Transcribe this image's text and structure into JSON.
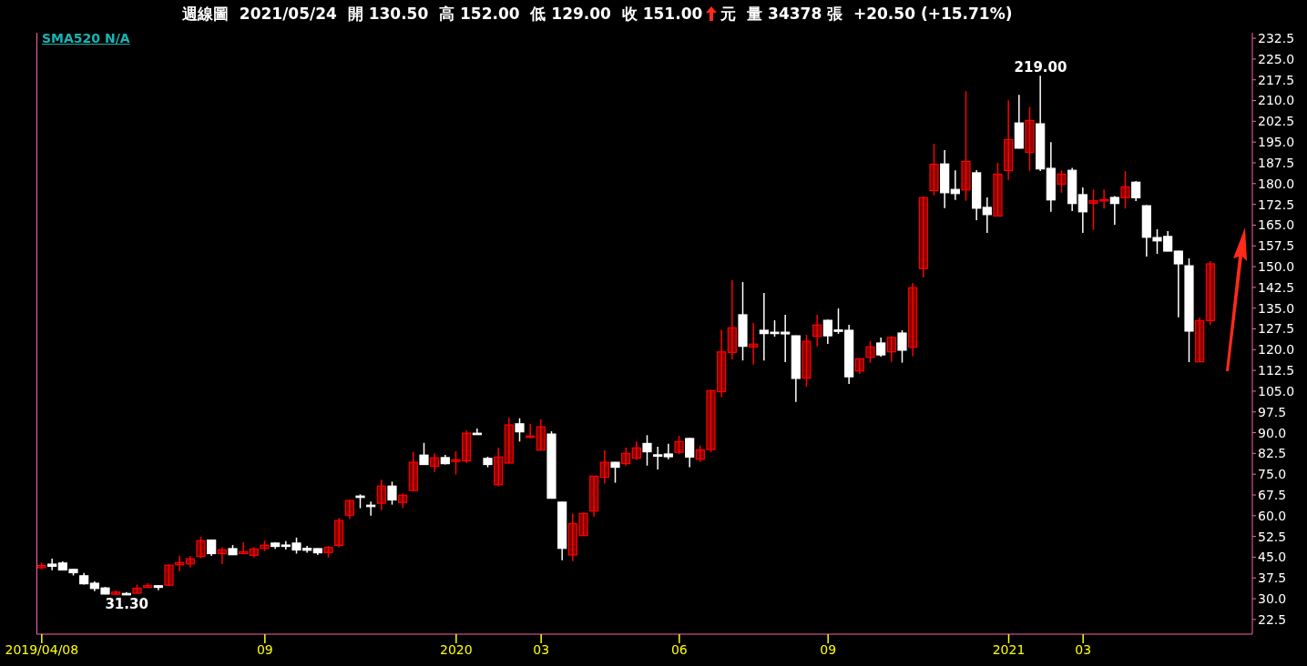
{
  "chart_data": {
    "type": "candlestick",
    "title": "週線圖  2021/05/24  開 130.50  高 152.00  低 129.00  收 151.00",
    "subtitle": "元  量 34378 張  +20.50 (+15.71%)",
    "annotations": [
      "SMA520 N/A",
      {
        "text": "219.00",
        "y": 219
      },
      {
        "text": "31.30",
        "y": 31.3
      }
    ],
    "categories": [
      "2019/04/08",
      null,
      null,
      null,
      null,
      null,
      null,
      null,
      null,
      null,
      null,
      null,
      null,
      null,
      null,
      null,
      null,
      null,
      null,
      null,
      null,
      "09",
      null,
      null,
      null,
      null,
      null,
      null,
      null,
      null,
      null,
      null,
      null,
      null,
      null,
      null,
      null,
      null,
      null,
      "2020",
      null,
      null,
      null,
      null,
      null,
      null,
      null,
      "03",
      null,
      null,
      null,
      null,
      null,
      null,
      null,
      null,
      null,
      null,
      null,
      null,
      "06",
      null,
      null,
      null,
      null,
      null,
      null,
      null,
      null,
      null,
      null,
      null,
      null,
      null,
      "09",
      null,
      null,
      null,
      null,
      null,
      null,
      null,
      null,
      null,
      null,
      null,
      null,
      null,
      null,
      null,
      null,
      "2021",
      null,
      null,
      null,
      null,
      null,
      null,
      "03",
      null,
      null,
      null,
      null,
      null,
      null,
      null,
      null,
      null,
      null,
      null,
      null
    ],
    "ohlc": [
      [
        41.2,
        43.1,
        40.7,
        42.0
      ],
      [
        42.5,
        44.5,
        40.3,
        41.7
      ],
      [
        42.9,
        43.5,
        40.3,
        40.4
      ],
      [
        40.6,
        40.8,
        38.4,
        39.4
      ],
      [
        38.3,
        39.3,
        35.1,
        35.4
      ],
      [
        35.6,
        36.3,
        32.7,
        33.7
      ],
      [
        33.9,
        34.3,
        31.6,
        31.7
      ],
      [
        31.6,
        33.0,
        31.5,
        32.4
      ],
      [
        31.9,
        32.4,
        31.3,
        31.6
      ],
      [
        32.0,
        35.1,
        31.9,
        33.8
      ],
      [
        34.1,
        35.6,
        34.0,
        34.7
      ],
      [
        34.7,
        34.8,
        33.1,
        34.1
      ],
      [
        34.9,
        42.4,
        34.8,
        42.1
      ],
      [
        42.3,
        45.5,
        40.0,
        43.1
      ],
      [
        42.6,
        45.5,
        41.3,
        44.4
      ],
      [
        45.3,
        52.4,
        44.6,
        51.0
      ],
      [
        51.2,
        51.4,
        45.5,
        46.3
      ],
      [
        46.3,
        48.5,
        42.6,
        47.7
      ],
      [
        48.1,
        49.4,
        45.8,
        45.9
      ],
      [
        46.3,
        50.4,
        46.2,
        47.0
      ],
      [
        45.7,
        48.7,
        44.9,
        48.0
      ],
      [
        48.2,
        51.1,
        47.2,
        49.3
      ],
      [
        50.1,
        50.4,
        48.0,
        48.9
      ],
      [
        49.4,
        50.8,
        47.8,
        49.1
      ],
      [
        50.1,
        52.1,
        46.3,
        47.6
      ],
      [
        48.2,
        49.1,
        46.6,
        47.5
      ],
      [
        48.1,
        48.3,
        45.8,
        46.6
      ],
      [
        46.7,
        49.1,
        44.9,
        48.5
      ],
      [
        49.3,
        59.2,
        48.5,
        58.2
      ],
      [
        60.2,
        65.8,
        58.8,
        65.5
      ],
      [
        67.1,
        67.7,
        62.7,
        66.6
      ],
      [
        63.8,
        65.1,
        60.0,
        63.5
      ],
      [
        64.5,
        73.0,
        62.0,
        70.7
      ],
      [
        70.7,
        72.3,
        64.0,
        65.7
      ],
      [
        64.8,
        68.1,
        62.8,
        67.4
      ],
      [
        69.1,
        83.0,
        69.0,
        79.3
      ],
      [
        81.9,
        86.3,
        78.4,
        78.5
      ],
      [
        77.9,
        82.5,
        75.8,
        80.9
      ],
      [
        81.0,
        82.0,
        78.5,
        78.8
      ],
      [
        79.6,
        83.3,
        74.9,
        80.2
      ],
      [
        79.8,
        90.8,
        79.0,
        89.8
      ],
      [
        89.8,
        91.5,
        89.2,
        89.3
      ],
      [
        80.7,
        81.3,
        77.5,
        78.5
      ],
      [
        71.2,
        84.6,
        70.6,
        81.2
      ],
      [
        79.0,
        95.5,
        78.9,
        92.8
      ],
      [
        93.2,
        95.2,
        86.8,
        90.3
      ],
      [
        88.4,
        93.2,
        88.0,
        88.8
      ],
      [
        83.7,
        94.8,
        83.6,
        92.1
      ],
      [
        89.5,
        90.5,
        66.2,
        66.3
      ],
      [
        64.9,
        65.0,
        43.9,
        48.2
      ],
      [
        45.8,
        60.8,
        43.6,
        57.1
      ],
      [
        52.8,
        61.2,
        52.7,
        60.8
      ],
      [
        61.7,
        74.4,
        59.7,
        74.3
      ],
      [
        73.9,
        83.7,
        71.6,
        79.3
      ],
      [
        79.3,
        79.4,
        71.9,
        77.5
      ],
      [
        78.8,
        84.6,
        78.1,
        82.5
      ],
      [
        80.8,
        86.9,
        80.1,
        84.5
      ],
      [
        86.1,
        89.1,
        78.1,
        83.1
      ],
      [
        82.0,
        84.9,
        76.7,
        81.7
      ],
      [
        82.3,
        86.0,
        80.4,
        81.3
      ],
      [
        82.9,
        88.9,
        82.2,
        86.8
      ],
      [
        87.9,
        88.2,
        77.5,
        81.2
      ],
      [
        80.4,
        85.3,
        79.4,
        83.8
      ],
      [
        83.9,
        105.5,
        82.9,
        105.2
      ],
      [
        104.8,
        127.2,
        102.8,
        119.2
      ],
      [
        119.0,
        145.1,
        116.5,
        127.9
      ],
      [
        132.6,
        144.4,
        116.1,
        121.2
      ],
      [
        121.0,
        129.6,
        114.6,
        122.0
      ],
      [
        127.0,
        140.5,
        116.1,
        125.8
      ],
      [
        126.3,
        130.6,
        124.7,
        126.0
      ],
      [
        126.3,
        132.6,
        115.5,
        125.7
      ],
      [
        125.0,
        125.1,
        101.1,
        109.6
      ],
      [
        109.7,
        125.4,
        106.6,
        123.0
      ],
      [
        124.8,
        132.6,
        121.2,
        128.9
      ],
      [
        130.6,
        130.9,
        122.1,
        125.0
      ],
      [
        127.1,
        134.9,
        125.7,
        126.8
      ],
      [
        127.0,
        129.0,
        107.6,
        110.2
      ],
      [
        112.3,
        116.8,
        111.2,
        116.7
      ],
      [
        117.2,
        123.1,
        115.2,
        121.0
      ],
      [
        122.4,
        124.4,
        117.5,
        118.1
      ],
      [
        119.2,
        124.9,
        115.6,
        124.4
      ],
      [
        126.0,
        127.0,
        115.3,
        119.8
      ],
      [
        120.9,
        144.1,
        117.6,
        142.4
      ],
      [
        149.3,
        175.3,
        146.1,
        174.9
      ],
      [
        177.5,
        194.4,
        175.7,
        187.0
      ],
      [
        187.1,
        192.1,
        171.1,
        176.7
      ],
      [
        177.9,
        184.8,
        174.1,
        176.4
      ],
      [
        177.7,
        213.4,
        173.8,
        188.0
      ],
      [
        183.9,
        184.9,
        166.8,
        171.1
      ],
      [
        171.4,
        175.0,
        162.2,
        168.8
      ],
      [
        168.3,
        187.5,
        168.2,
        183.4
      ],
      [
        184.7,
        210.1,
        181.3,
        195.9
      ],
      [
        201.9,
        212.1,
        192.7,
        192.8
      ],
      [
        191.3,
        207.7,
        184.6,
        202.8
      ],
      [
        201.6,
        219.0,
        184.5,
        185.3
      ],
      [
        185.5,
        195.0,
        169.8,
        174.1
      ],
      [
        179.8,
        184.8,
        176.7,
        183.4
      ],
      [
        184.8,
        185.7,
        170.1,
        172.8
      ],
      [
        176.0,
        178.6,
        162.2,
        169.8
      ],
      [
        172.9,
        177.9,
        163.3,
        173.8
      ],
      [
        173.8,
        177.9,
        171.0,
        174.2
      ],
      [
        175.0,
        175.5,
        165.1,
        172.8
      ],
      [
        174.9,
        184.5,
        171.0,
        178.8
      ],
      [
        180.5,
        180.9,
        173.7,
        174.9
      ],
      [
        172.0,
        172.2,
        153.6,
        160.6
      ],
      [
        160.5,
        163.5,
        154.6,
        159.3
      ],
      [
        160.9,
        162.8,
        155.5,
        155.6
      ],
      [
        155.6,
        155.7,
        131.7,
        151.0
      ],
      [
        150.3,
        153.0,
        115.5,
        126.7
      ],
      [
        115.6,
        131.6,
        115.5,
        130.5
      ],
      [
        130.5,
        152.0,
        129.0,
        151.0
      ]
    ],
    "colors": [
      "#ff0000",
      "#ffffff",
      "#ffffff",
      "#ffffff",
      "#ffffff",
      "#ffffff",
      "#ffffff",
      "#ff0000",
      "#ffffff",
      "#ff0000",
      "#ff0000",
      "#ffffff",
      "#ff0000",
      "#ff0000",
      "#ff0000",
      "#ff0000",
      "#ffffff",
      "#ff0000",
      "#ffffff",
      "#ff0000",
      "#ff0000",
      "#ff0000",
      "#ffffff",
      "#ffffff",
      "#ffffff",
      "#ffffff",
      "#ffffff",
      "#ff0000",
      "#ff0000",
      "#ff0000",
      "#ffffff",
      "#ffffff",
      "#ff0000",
      "#ffffff",
      "#ff0000",
      "#ff0000",
      "#ffffff",
      "#ff0000",
      "#ffffff",
      "#ff0000",
      "#ff0000",
      "#ffffff",
      "#ffffff",
      "#ff0000",
      "#ff0000",
      "#ffffff",
      "#ff0000",
      "#ff0000",
      "#ffffff",
      "#ffffff",
      "#ff0000",
      "#ff0000",
      "#ff0000",
      "#ff0000",
      "#ffffff",
      "#ff0000",
      "#ff0000",
      "#ffffff",
      "#ffffff",
      "#ffffff",
      "#ff0000",
      "#ffffff",
      "#ff0000",
      "#ff0000",
      "#ff0000",
      "#ff0000",
      "#ffffff",
      "#ff0000",
      "#ffffff",
      "#ffffff",
      "#ffffff",
      "#ffffff",
      "#ff0000",
      "#ff0000",
      "#ffffff",
      "#ffffff",
      "#ffffff",
      "#ff0000",
      "#ff0000",
      "#ffffff",
      "#ff0000",
      "#ffffff",
      "#ff0000",
      "#ff0000",
      "#ff0000",
      "#ffffff",
      "#ffffff",
      "#ff0000",
      "#ffffff",
      "#ffffff",
      "#ff0000",
      "#ff0000",
      "#ffffff",
      "#ff0000",
      "#ffffff",
      "#ffffff",
      "#ff0000",
      "#ffffff",
      "#ffffff",
      "#ff0000",
      "#ff0000",
      "#ffffff",
      "#ff0000",
      "#ffffff",
      "#ffffff",
      "#ffffff",
      "#ffffff",
      "#ffffff",
      "#ffffff",
      "#ff0000",
      "#ff0000"
    ],
    "ylim": [
      17.2,
      234.5
    ],
    "yticks": [
      22.5,
      {
        "value": 30,
        "label": "30.0"
      },
      37.5,
      {
        "value": 45,
        "label": "45.0"
      },
      52.5,
      {
        "value": 60,
        "label": "60.0"
      },
      67.5,
      {
        "value": 75,
        "label": "75.0"
      },
      82.5,
      {
        "value": 90,
        "label": "90.0"
      },
      97.5,
      {
        "value": 105,
        "label": "105.0"
      },
      112.5,
      {
        "value": 120,
        "label": "120.0"
      },
      127.5,
      {
        "value": 135,
        "label": "135.0"
      },
      142.5,
      {
        "value": 150,
        "label": "150.0"
      },
      157.5,
      {
        "value": 165,
        "label": "165.0"
      },
      172.5,
      {
        "value": 180,
        "label": "180.0"
      },
      187.5,
      {
        "value": 195,
        "label": "195.0"
      },
      202.5,
      {
        "value": 210,
        "label": "210.0"
      },
      217.5,
      {
        "value": 225,
        "label": "225.0"
      },
      232.5
    ],
    "grid": false,
    "legend": false
  }
}
